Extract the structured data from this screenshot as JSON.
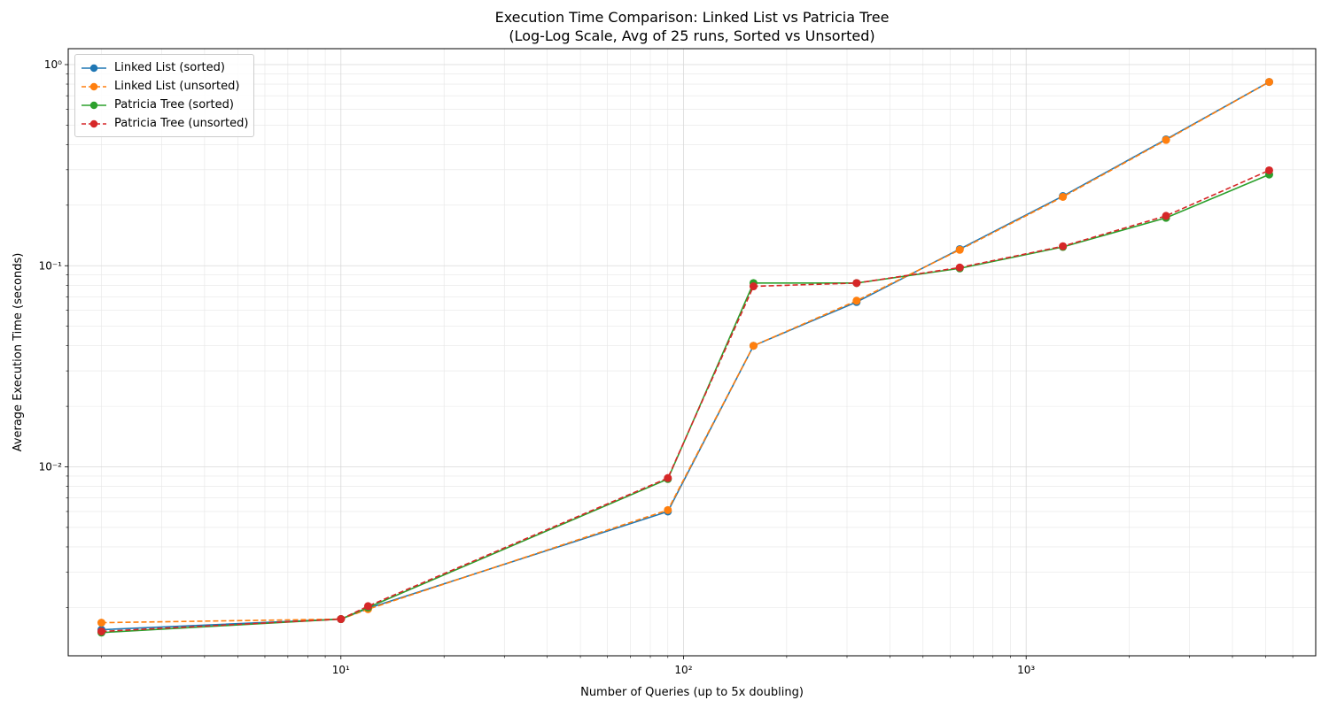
{
  "chart_data": {
    "type": "line",
    "title": "Execution Time Comparison: Linked List vs Patricia Tree",
    "subtitle": "(Log-Log Scale, Avg of 25 runs, Sorted vs Unsorted)",
    "xlabel": "Number of Queries (up to 5x doubling)",
    "ylabel": "Average Execution Time (seconds)",
    "xscale": "log",
    "yscale": "log",
    "xlim": [
      1.6,
      7000
    ],
    "ylim": [
      0.00115,
      1.2
    ],
    "x_ticks": [
      10,
      100,
      1000
    ],
    "x_tick_labels": [
      "10¹",
      "10²",
      "10³"
    ],
    "y_ticks": [
      0.01,
      0.1,
      1
    ],
    "y_tick_labels": [
      "10⁻²",
      "10⁻¹",
      "10⁰"
    ],
    "grid": true,
    "legend_position": "top-left",
    "x": [
      2,
      10,
      12,
      90,
      160,
      320,
      640,
      1280,
      2560,
      5120
    ],
    "series": [
      {
        "name": "Linked List (sorted)",
        "color": "#1f77b4",
        "linestyle": "solid",
        "values": [
          0.00155,
          0.00175,
          0.00198,
          0.006,
          0.04,
          0.066,
          0.121,
          0.222,
          0.425,
          0.82
        ]
      },
      {
        "name": "Linked List (unsorted)",
        "color": "#ff7f0e",
        "linestyle": "dashed",
        "values": [
          0.00168,
          0.00175,
          0.00196,
          0.0061,
          0.04,
          0.067,
          0.12,
          0.22,
          0.422,
          0.82
        ]
      },
      {
        "name": "Patricia Tree (sorted)",
        "color": "#2ca02c",
        "linestyle": "solid",
        "values": [
          0.0015,
          0.00175,
          0.002,
          0.0087,
          0.082,
          0.082,
          0.097,
          0.124,
          0.173,
          0.284
        ]
      },
      {
        "name": "Patricia Tree (unsorted)",
        "color": "#d62728",
        "linestyle": "dashed",
        "values": [
          0.00152,
          0.00175,
          0.00203,
          0.0088,
          0.079,
          0.082,
          0.098,
          0.125,
          0.177,
          0.298
        ]
      }
    ]
  }
}
